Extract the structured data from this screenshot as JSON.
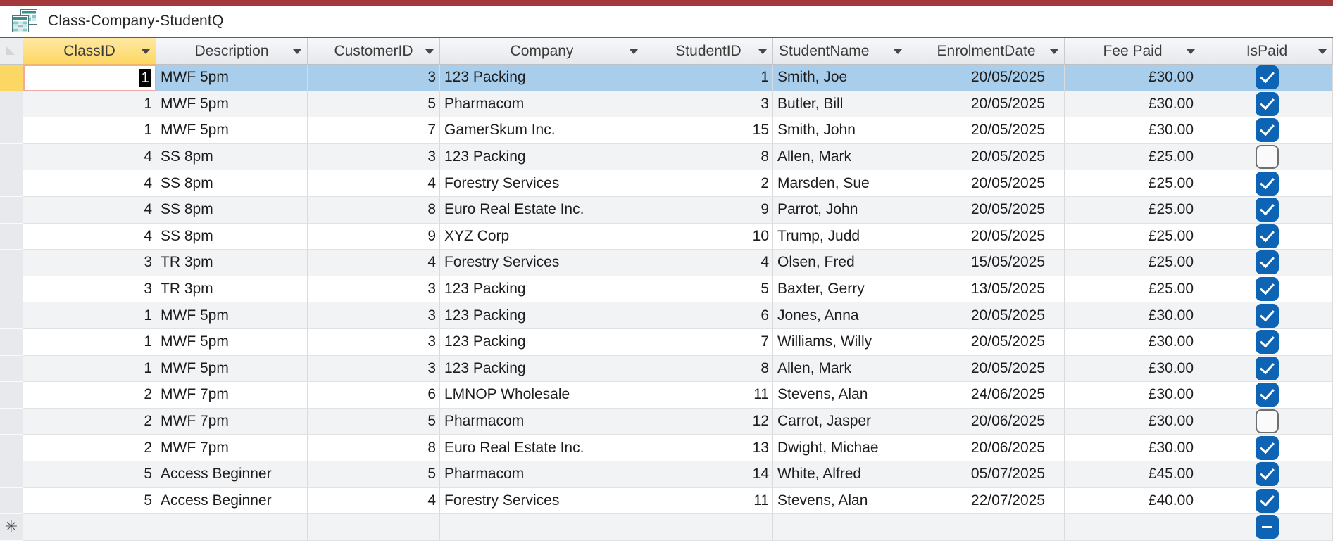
{
  "window": {
    "tab_title": "Class-Company-StudentQ",
    "tab_icon": "query-datasheet-icon"
  },
  "theme": {
    "accent_red": "#A4383A",
    "tab_separator": "#9B4142",
    "header_bg_top": "#F7F8FA",
    "header_bg_bottom": "#E6E8EB",
    "header_gold_top": "#FEE9A2",
    "header_gold_bottom": "#FDD763",
    "row_selector_current": "#FDD763",
    "selection_blue": "#A9CEEC",
    "checkbox_blue": "#0E64B4",
    "active_cell_border": "#F0A9A7",
    "alt_row": "#F2F3F4"
  },
  "table": {
    "selected_column": "ClassID",
    "selected_row": 1,
    "active_cell": {
      "row": 1,
      "field": "class_id",
      "value": "1"
    },
    "new_record_symbol": "✳",
    "columns": [
      {
        "id": "ClassID",
        "label": "ClassID"
      },
      {
        "id": "Description",
        "label": "Description"
      },
      {
        "id": "CustomerID",
        "label": "CustomerID"
      },
      {
        "id": "Company",
        "label": "Company"
      },
      {
        "id": "StudentID",
        "label": "StudentID"
      },
      {
        "id": "StudentName",
        "label": "StudentName"
      },
      {
        "id": "EnrolmentDate",
        "label": "EnrolmentDate"
      },
      {
        "id": "FeePaid",
        "label": "Fee Paid"
      },
      {
        "id": "IsPaid",
        "label": "IsPaid"
      }
    ],
    "rows": [
      {
        "class_id": "1",
        "description": "MWF 5pm",
        "customer_id": "3",
        "company": "123 Packing",
        "student_id": "1",
        "student_name": "Smith, Joe",
        "enrolment_date": "20/05/2025",
        "fee_paid": "£30.00",
        "is_paid": true
      },
      {
        "class_id": "1",
        "description": "MWF 5pm",
        "customer_id": "5",
        "company": "Pharmacom",
        "student_id": "3",
        "student_name": "Butler, Bill",
        "enrolment_date": "20/05/2025",
        "fee_paid": "£30.00",
        "is_paid": true
      },
      {
        "class_id": "1",
        "description": "MWF 5pm",
        "customer_id": "7",
        "company": "GamerSkum Inc.",
        "student_id": "15",
        "student_name": "Smith, John",
        "enrolment_date": "20/05/2025",
        "fee_paid": "£30.00",
        "is_paid": true
      },
      {
        "class_id": "4",
        "description": "SS 8pm",
        "customer_id": "3",
        "company": "123 Packing",
        "student_id": "8",
        "student_name": "Allen, Mark",
        "enrolment_date": "20/05/2025",
        "fee_paid": "£25.00",
        "is_paid": false
      },
      {
        "class_id": "4",
        "description": "SS 8pm",
        "customer_id": "4",
        "company": "Forestry Services",
        "student_id": "2",
        "student_name": "Marsden, Sue",
        "enrolment_date": "20/05/2025",
        "fee_paid": "£25.00",
        "is_paid": true
      },
      {
        "class_id": "4",
        "description": "SS 8pm",
        "customer_id": "8",
        "company": "Euro Real Estate Inc.",
        "student_id": "9",
        "student_name": "Parrot, John",
        "enrolment_date": "20/05/2025",
        "fee_paid": "£25.00",
        "is_paid": true
      },
      {
        "class_id": "4",
        "description": "SS 8pm",
        "customer_id": "9",
        "company": "XYZ Corp",
        "student_id": "10",
        "student_name": "Trump, Judd",
        "enrolment_date": "20/05/2025",
        "fee_paid": "£25.00",
        "is_paid": true
      },
      {
        "class_id": "3",
        "description": "TR 3pm",
        "customer_id": "4",
        "company": "Forestry Services",
        "student_id": "4",
        "student_name": "Olsen, Fred",
        "enrolment_date": "15/05/2025",
        "fee_paid": "£25.00",
        "is_paid": true
      },
      {
        "class_id": "3",
        "description": "TR 3pm",
        "customer_id": "3",
        "company": "123 Packing",
        "student_id": "5",
        "student_name": "Baxter, Gerry",
        "enrolment_date": "13/05/2025",
        "fee_paid": "£25.00",
        "is_paid": true
      },
      {
        "class_id": "1",
        "description": "MWF 5pm",
        "customer_id": "3",
        "company": "123 Packing",
        "student_id": "6",
        "student_name": "Jones, Anna",
        "enrolment_date": "20/05/2025",
        "fee_paid": "£30.00",
        "is_paid": true
      },
      {
        "class_id": "1",
        "description": "MWF 5pm",
        "customer_id": "3",
        "company": "123 Packing",
        "student_id": "7",
        "student_name": "Williams, Willy",
        "enrolment_date": "20/05/2025",
        "fee_paid": "£30.00",
        "is_paid": true
      },
      {
        "class_id": "1",
        "description": "MWF 5pm",
        "customer_id": "3",
        "company": "123 Packing",
        "student_id": "8",
        "student_name": "Allen, Mark",
        "enrolment_date": "20/05/2025",
        "fee_paid": "£30.00",
        "is_paid": true
      },
      {
        "class_id": "2",
        "description": "MWF 7pm",
        "customer_id": "6",
        "company": "LMNOP Wholesale",
        "student_id": "11",
        "student_name": "Stevens, Alan",
        "enrolment_date": "24/06/2025",
        "fee_paid": "£30.00",
        "is_paid": true
      },
      {
        "class_id": "2",
        "description": "MWF 7pm",
        "customer_id": "5",
        "company": "Pharmacom",
        "student_id": "12",
        "student_name": "Carrot, Jasper",
        "enrolment_date": "20/06/2025",
        "fee_paid": "£30.00",
        "is_paid": false
      },
      {
        "class_id": "2",
        "description": "MWF 7pm",
        "customer_id": "8",
        "company": "Euro Real Estate Inc.",
        "student_id": "13",
        "student_name": "Dwight, Michae",
        "enrolment_date": "20/06/2025",
        "fee_paid": "£30.00",
        "is_paid": true
      },
      {
        "class_id": "5",
        "description": "Access Beginner",
        "customer_id": "5",
        "company": "Pharmacom",
        "student_id": "14",
        "student_name": "White, Alfred",
        "enrolment_date": "05/07/2025",
        "fee_paid": "£45.00",
        "is_paid": true
      },
      {
        "class_id": "5",
        "description": "Access Beginner",
        "customer_id": "4",
        "company": "Forestry Services",
        "student_id": "11",
        "student_name": "Stevens, Alan",
        "enrolment_date": "22/07/2025",
        "fee_paid": "£40.00",
        "is_paid": true
      }
    ],
    "new_row": {
      "is_paid": "indeterminate"
    }
  }
}
